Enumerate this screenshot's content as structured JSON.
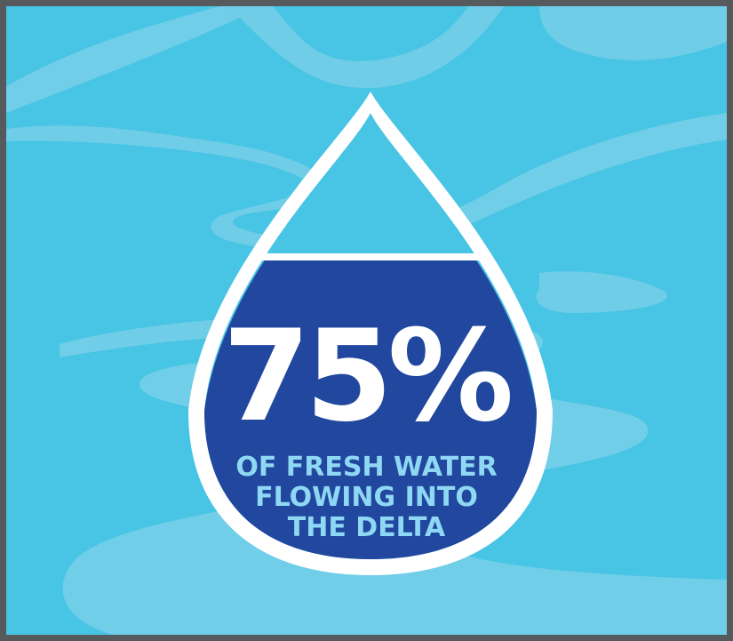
{
  "graphic": {
    "stat": "75%",
    "caption_lines": [
      "OF FRESH WATER",
      "FLOWING INTO",
      "THE DELTA"
    ]
  },
  "colors": {
    "background": "#48c4e4",
    "river": "#74cfe8",
    "drop_fill": "#21479f",
    "drop_outline": "#ffffff",
    "stat_text": "#ffffff",
    "caption_text": "#8fd8f3",
    "frame": "#565a5c"
  },
  "icons": [
    "water-drop-icon"
  ],
  "fill_level": 0.75
}
